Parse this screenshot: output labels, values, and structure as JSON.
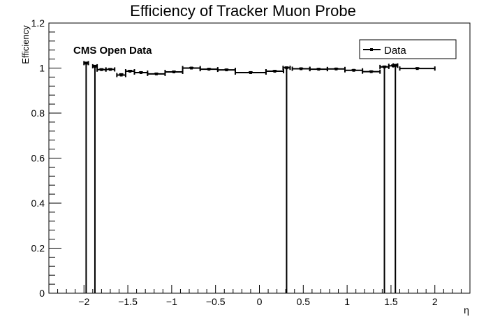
{
  "chart_data": {
    "type": "scatter",
    "title": "Efficiency of Tracker Muon Probe",
    "xlabel": "η",
    "ylabel": "Efficiency",
    "annotation": "CMS Open Data",
    "legend": {
      "entries": [
        "Data"
      ],
      "placement": "top-right"
    },
    "xlim": [
      -2.4,
      2.4
    ],
    "ylim": [
      0,
      1.2
    ],
    "grid": false,
    "xticks": [
      -2,
      -1.5,
      -1,
      -0.5,
      0,
      0.5,
      1,
      1.5,
      2
    ],
    "xtick_labels": [
      "−2",
      "−1.5",
      "−1",
      "−0.5",
      "0",
      "0.5",
      "1",
      "1.5",
      "2"
    ],
    "yticks": [
      0,
      0.2,
      0.4,
      0.6,
      0.8,
      1,
      1.2
    ],
    "ytick_labels": [
      "0",
      "0.2",
      "0.4",
      "0.6",
      "0.8",
      "1",
      "1.2"
    ],
    "series": [
      {
        "name": "Data",
        "points": [
          {
            "x": -1.975,
            "xerr": 0.025,
            "y": 1.022,
            "yerr_low": 1.022,
            "yerr_high": 0.003
          },
          {
            "x": -1.875,
            "xerr": 0.025,
            "y": 1.008,
            "yerr_low": 1.008,
            "yerr_high": 0.003
          },
          {
            "x": -1.8,
            "xerr": 0.05,
            "y": 0.993,
            "yerr_low": 0.003,
            "yerr_high": 0.003
          },
          {
            "x": -1.7,
            "xerr": 0.05,
            "y": 0.994,
            "yerr_low": 0.003,
            "yerr_high": 0.003
          },
          {
            "x": -1.575,
            "xerr": 0.05,
            "y": 0.969,
            "yerr_low": 0.005,
            "yerr_high": 0.005
          },
          {
            "x": -1.475,
            "xerr": 0.05,
            "y": 0.986,
            "yerr_low": 0.003,
            "yerr_high": 0.003
          },
          {
            "x": -1.35,
            "xerr": 0.075,
            "y": 0.98,
            "yerr_low": 0.002,
            "yerr_high": 0.002
          },
          {
            "x": -1.175,
            "xerr": 0.1,
            "y": 0.974,
            "yerr_low": 0.002,
            "yerr_high": 0.002
          },
          {
            "x": -0.975,
            "xerr": 0.1,
            "y": 0.983,
            "yerr_low": 0.002,
            "yerr_high": 0.002
          },
          {
            "x": -0.775,
            "xerr": 0.1,
            "y": 1.0,
            "yerr_low": 0.002,
            "yerr_high": 0.002
          },
          {
            "x": -0.575,
            "xerr": 0.1,
            "y": 0.995,
            "yerr_low": 0.002,
            "yerr_high": 0.002
          },
          {
            "x": -0.375,
            "xerr": 0.1,
            "y": 0.992,
            "yerr_low": 0.002,
            "yerr_high": 0.002
          },
          {
            "x": -0.1,
            "xerr": 0.175,
            "y": 0.98,
            "yerr_low": 0.002,
            "yerr_high": 0.002
          },
          {
            "x": 0.175,
            "xerr": 0.1,
            "y": 0.986,
            "yerr_low": 0.002,
            "yerr_high": 0.002
          },
          {
            "x": 0.31,
            "xerr": 0.04,
            "y": 1.001,
            "yerr_low": 1.001,
            "yerr_high": 0.003
          },
          {
            "x": 0.475,
            "xerr": 0.1,
            "y": 0.997,
            "yerr_low": 0.002,
            "yerr_high": 0.002
          },
          {
            "x": 0.675,
            "xerr": 0.1,
            "y": 0.995,
            "yerr_low": 0.002,
            "yerr_high": 0.002
          },
          {
            "x": 0.875,
            "xerr": 0.1,
            "y": 0.996,
            "yerr_low": 0.002,
            "yerr_high": 0.002
          },
          {
            "x": 1.075,
            "xerr": 0.1,
            "y": 0.99,
            "yerr_low": 0.002,
            "yerr_high": 0.002
          },
          {
            "x": 1.275,
            "xerr": 0.1,
            "y": 0.984,
            "yerr_low": 0.002,
            "yerr_high": 0.002
          },
          {
            "x": 1.425,
            "xerr": 0.05,
            "y": 1.005,
            "yerr_low": 1.005,
            "yerr_high": 0.003
          },
          {
            "x": 1.525,
            "xerr": 0.05,
            "y": 1.01,
            "yerr_low": 0.003,
            "yerr_high": 0.003
          },
          {
            "x": 1.55,
            "xerr": 0.025,
            "y": 1.012,
            "yerr_low": 1.012,
            "yerr_high": 0.003
          },
          {
            "x": 1.8,
            "xerr": 0.2,
            "y": 0.998,
            "yerr_low": 0.002,
            "yerr_high": 0.002
          }
        ]
      }
    ]
  }
}
